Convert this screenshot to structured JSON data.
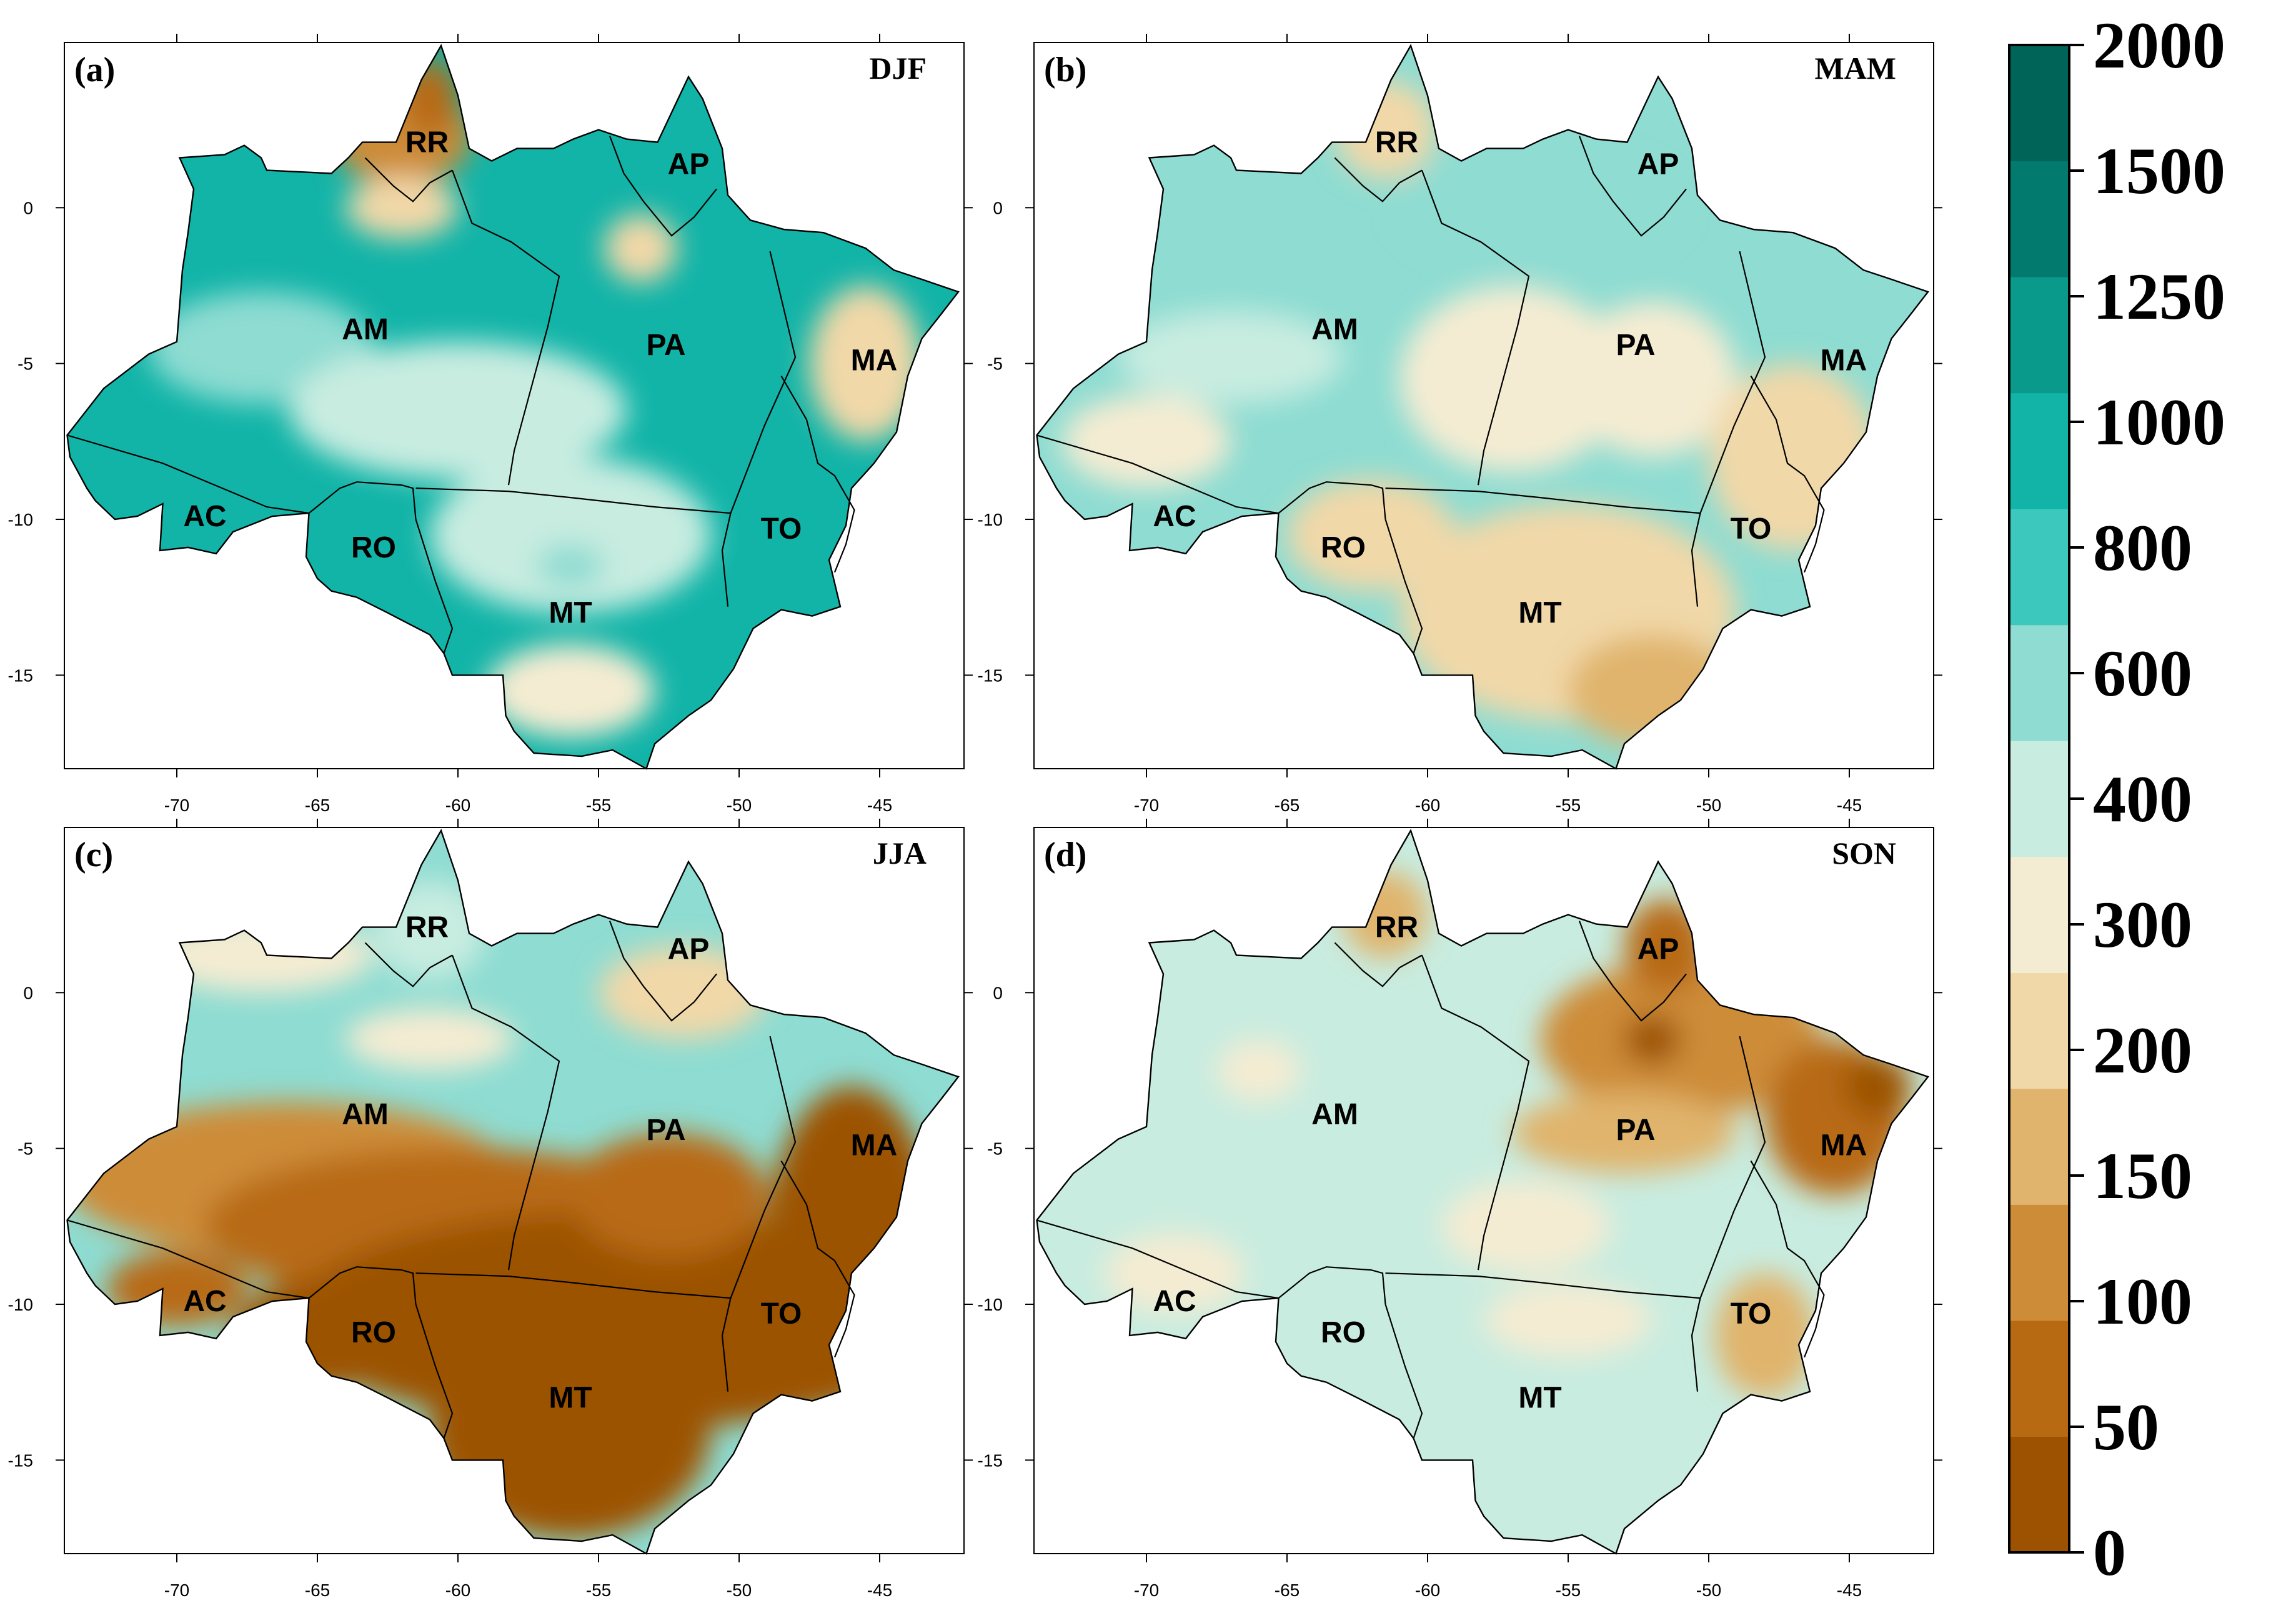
{
  "figure": {
    "x_ticks": [
      -70,
      -65,
      -60,
      -55,
      -50,
      -45
    ],
    "y_ticks": [
      0,
      -5,
      -10,
      -15
    ],
    "x_range": [
      -74,
      -42
    ],
    "y_range": [
      -18,
      5.3
    ],
    "states": [
      {
        "code": "RR",
        "lon": -61.1,
        "lat": 2.1
      },
      {
        "code": "AP",
        "lon": -51.8,
        "lat": 1.4
      },
      {
        "code": "AM",
        "lon": -63.3,
        "lat": -3.9
      },
      {
        "code": "PA",
        "lon": -52.6,
        "lat": -4.4
      },
      {
        "code": "MA",
        "lon": -45.2,
        "lat": -4.9
      },
      {
        "code": "AC",
        "lon": -69.0,
        "lat": -9.9
      },
      {
        "code": "RO",
        "lon": -63.0,
        "lat": -10.9
      },
      {
        "code": "TO",
        "lon": -48.5,
        "lat": -10.3
      },
      {
        "code": "MT",
        "lon": -56.0,
        "lat": -13.0
      }
    ],
    "panels": [
      {
        "id": "a",
        "label": "(a)",
        "season": "DJF",
        "blobs": [
          {
            "lon": -67,
            "lat": -4.5,
            "rx": 4,
            "ry": 1.8,
            "c": 7
          },
          {
            "lon": -60,
            "lat": -6.5,
            "rx": 6,
            "ry": 2.2,
            "c": 6
          },
          {
            "lon": -56,
            "lat": -10.5,
            "rx": 5,
            "ry": 2.5,
            "c": 6
          },
          {
            "lon": -56,
            "lat": -11.5,
            "rx": 1.2,
            "ry": 0.7,
            "c": 7
          },
          {
            "lon": -62,
            "lat": 2.3,
            "rx": 2.5,
            "ry": 1.6,
            "c": 2
          },
          {
            "lon": -61,
            "lat": 3.5,
            "rx": 1,
            "ry": 1.3,
            "c": 1
          },
          {
            "lon": -62,
            "lat": 0,
            "rx": 2,
            "ry": 1,
            "c": 4
          },
          {
            "lon": -53.5,
            "lat": -1.3,
            "rx": 1.3,
            "ry": 1.1,
            "c": 4
          },
          {
            "lon": -45.5,
            "lat": -5,
            "rx": 2,
            "ry": 2.5,
            "c": 4
          },
          {
            "lon": -56,
            "lat": -15.5,
            "rx": 3,
            "ry": 1.5,
            "c": 5
          }
        ]
      },
      {
        "id": "b",
        "label": "(b)",
        "season": "MAM",
        "blobs": [
          {
            "lon": -56,
            "lat": 0,
            "rx": 5,
            "ry": 1.8,
            "c": 7
          },
          {
            "lon": -67,
            "lat": -4.8,
            "rx": 4,
            "ry": 1.5,
            "c": 6
          },
          {
            "lon": -57,
            "lat": -5.5,
            "rx": 4,
            "ry": 3,
            "c": 5
          },
          {
            "lon": -52,
            "lat": -5.5,
            "rx": 3,
            "ry": 2.5,
            "c": 5
          },
          {
            "lon": -55,
            "lat": -13,
            "rx": 6,
            "ry": 3.5,
            "c": 4
          },
          {
            "lon": -47,
            "lat": -8,
            "rx": 3,
            "ry": 3,
            "c": 4
          },
          {
            "lon": -62,
            "lat": -10.5,
            "rx": 3,
            "ry": 1.8,
            "c": 4
          },
          {
            "lon": -61.5,
            "lat": 2.5,
            "rx": 1.8,
            "ry": 1.6,
            "c": 4
          },
          {
            "lon": -70,
            "lat": -7.5,
            "rx": 3,
            "ry": 1.5,
            "c": 5
          },
          {
            "lon": -52,
            "lat": -15.5,
            "rx": 3,
            "ry": 1.8,
            "c": 3
          }
        ]
      },
      {
        "id": "c",
        "label": "(c)",
        "season": "JJA",
        "blobs": [
          {
            "lon": -66,
            "lat": -6,
            "rx": 8,
            "ry": 2.5,
            "c": 2
          },
          {
            "lon": -60,
            "lat": -7.5,
            "rx": 9,
            "ry": 2.5,
            "c": 1
          },
          {
            "lon": -54,
            "lat": -10.5,
            "rx": 12,
            "ry": 3.5,
            "c": 0
          },
          {
            "lon": -56,
            "lat": -14,
            "rx": 5,
            "ry": 3.5,
            "c": 0
          },
          {
            "lon": -46,
            "lat": -8,
            "rx": 3,
            "ry": 5,
            "c": 0
          },
          {
            "lon": -55.5,
            "lat": -12.5,
            "rx": 3.5,
            "ry": 2,
            "c": 0
          },
          {
            "lon": -52.5,
            "lat": -6.5,
            "rx": 3.5,
            "ry": 2,
            "c": 1
          },
          {
            "lon": -65,
            "lat": -11,
            "rx": 3,
            "ry": 1.8,
            "c": 0
          },
          {
            "lon": -67,
            "lat": 1.2,
            "rx": 4,
            "ry": 1.2,
            "c": 5
          },
          {
            "lon": -61,
            "lat": 2,
            "rx": 2,
            "ry": 1.6,
            "c": 6
          },
          {
            "lon": -61,
            "lat": -1.5,
            "rx": 3,
            "ry": 1,
            "c": 5
          },
          {
            "lon": -52,
            "lat": 0,
            "rx": 3,
            "ry": 1.5,
            "c": 4
          },
          {
            "lon": -70,
            "lat": -9.5,
            "rx": 2.5,
            "ry": 1.2,
            "c": 1
          }
        ]
      },
      {
        "id": "d",
        "label": "(d)",
        "season": "SON",
        "blobs": [
          {
            "lon": -51,
            "lat": -1.5,
            "rx": 5,
            "ry": 2.5,
            "c": 2
          },
          {
            "lon": -45.5,
            "lat": -4,
            "rx": 2.5,
            "ry": 2.5,
            "c": 1
          },
          {
            "lon": -51.5,
            "lat": 1.5,
            "rx": 1.5,
            "ry": 1.5,
            "c": 1
          },
          {
            "lon": -52,
            "lat": -1.5,
            "rx": 1,
            "ry": 0.8,
            "c": 0
          },
          {
            "lon": -44,
            "lat": -3,
            "rx": 1.2,
            "ry": 1,
            "c": 0
          },
          {
            "lon": -53,
            "lat": -4.5,
            "rx": 4,
            "ry": 1.3,
            "c": 3
          },
          {
            "lon": -56.5,
            "lat": -7.5,
            "rx": 3,
            "ry": 1.5,
            "c": 5
          },
          {
            "lon": -55,
            "lat": -10.5,
            "rx": 3,
            "ry": 1.2,
            "c": 5
          },
          {
            "lon": -69,
            "lat": -9,
            "rx": 2.5,
            "ry": 1.3,
            "c": 5
          },
          {
            "lon": -66,
            "lat": -2.5,
            "rx": 1.5,
            "ry": 1,
            "c": 5
          },
          {
            "lon": -48,
            "lat": -11,
            "rx": 1.8,
            "ry": 2,
            "c": 3
          },
          {
            "lon": -61.5,
            "lat": 2.5,
            "rx": 1.5,
            "ry": 1.4,
            "c": 3
          }
        ]
      }
    ]
  },
  "colorbar": {
    "labels": [
      "2000",
      "1500",
      "1250",
      "1000",
      "800",
      "600",
      "400",
      "300",
      "200",
      "150",
      "100",
      "50",
      "0"
    ],
    "colors_bottom_to_top": [
      "#9c5200",
      "#b86a12",
      "#cd8c38",
      "#e0b46c",
      "#f1d8a8",
      "#f4ecd2",
      "#c8ece0",
      "#8edcd2",
      "#3cc8bc",
      "#12b4a8",
      "#0a9a8c",
      "#037a6e",
      "#006458"
    ]
  },
  "styles": {
    "ocean": "#ffffff",
    "border": "#000000",
    "base_colors": [
      "#12b4a8",
      "#8edcd2",
      "#8edcd2",
      "#c8ece0"
    ]
  }
}
